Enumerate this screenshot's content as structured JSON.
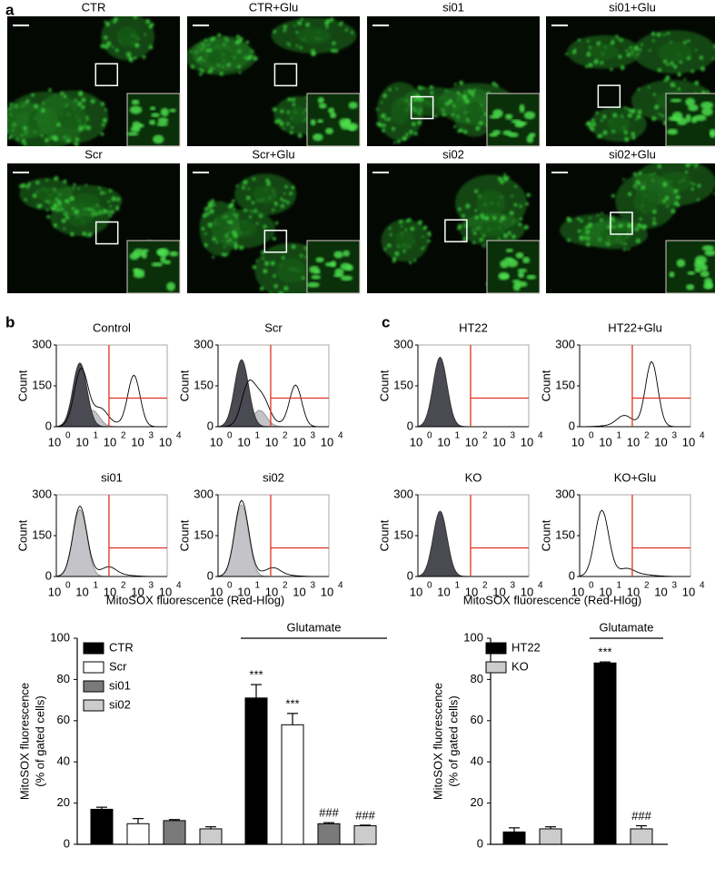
{
  "panel_a": {
    "label": "a",
    "titles": [
      "CTR",
      "CTR+Glu",
      "si01",
      "si01+Glu",
      "Scr",
      "Scr+Glu",
      "si02",
      "si02+Glu"
    ]
  },
  "panel_b": {
    "label": "b",
    "titles": [
      "Control",
      "Scr",
      "si01",
      "si02"
    ],
    "ylabel": "Count",
    "yticks": [
      0,
      150,
      300
    ],
    "xtick_base": "10",
    "xtick_exponents": [
      "0",
      "1",
      "2",
      "3",
      "4"
    ],
    "xlabel": "MitoSOX fluorescence (Red-Hlog)"
  },
  "panel_c": {
    "label": "c",
    "titles": [
      "HT22",
      "HT22+Glu",
      "KO",
      "KO+Glu"
    ],
    "ylabel": "Count",
    "yticks": [
      0,
      150,
      300
    ],
    "xtick_base": "10",
    "xtick_exponents": [
      "0",
      "1",
      "2",
      "3",
      "4"
    ],
    "xlabel": "MitoSOX fluorescence (Red-Hlog)"
  },
  "chart_data": [
    {
      "type": "bar",
      "ylabel": [
        "MitoSOX fluorescence",
        "(% of gated cells)"
      ],
      "categories": [
        null,
        "Glutamate"
      ],
      "ylim": [
        0,
        100
      ],
      "yticks": [
        0,
        20,
        40,
        60,
        80,
        100
      ],
      "series": [
        {
          "name": "CTR",
          "color": "#000000",
          "values": [
            17,
            71
          ],
          "errors": [
            1,
            6.5
          ],
          "annotations": [
            null,
            "***"
          ]
        },
        {
          "name": "Scr",
          "color": "#ffffff",
          "values": [
            10,
            58
          ],
          "errors": [
            2.5,
            5.5
          ],
          "annotations": [
            null,
            "***"
          ]
        },
        {
          "name": "si01",
          "color": "#7a7a7a",
          "values": [
            11.5,
            10
          ],
          "errors": [
            0.5,
            0.5
          ],
          "annotations": [
            null,
            "###"
          ]
        },
        {
          "name": "si02",
          "color": "#cccccc",
          "values": [
            7.5,
            9
          ],
          "errors": [
            1,
            0.3
          ],
          "annotations": [
            null,
            "###"
          ]
        }
      ]
    },
    {
      "type": "bar",
      "ylabel": [
        "MitoSOX fluorescence",
        "(% of gated cells)"
      ],
      "categories": [
        null,
        "Glutamate"
      ],
      "ylim": [
        0,
        100
      ],
      "yticks": [
        0,
        20,
        40,
        60,
        80,
        100
      ],
      "series": [
        {
          "name": "HT22",
          "color": "#000000",
          "values": [
            6,
            88
          ],
          "errors": [
            2,
            0.5
          ],
          "annotations": [
            null,
            "***"
          ]
        },
        {
          "name": "KO",
          "color": "#cccccc",
          "values": [
            7.5,
            7.5
          ],
          "errors": [
            1,
            1.5
          ],
          "annotations": [
            null,
            "###"
          ]
        }
      ]
    }
  ]
}
